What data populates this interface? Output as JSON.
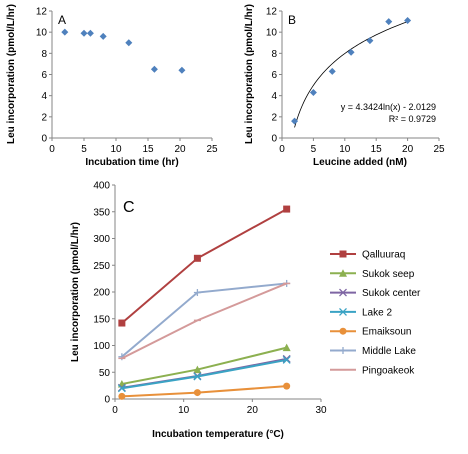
{
  "chart_data": [
    {
      "type": "scatter",
      "panel_label": "A",
      "xlabel": "Incubation time (hr)",
      "ylabel": "Leu incorporation (pmol/L/hr)",
      "xlim": [
        0,
        25
      ],
      "ylim": [
        0,
        12
      ],
      "xticks": [
        "0",
        "5",
        "10",
        "15",
        "20",
        "25"
      ],
      "yticks": [
        "0",
        "2",
        "4",
        "6",
        "8",
        "10",
        "12"
      ],
      "grid": false,
      "marker_color": "#4f81bd",
      "series": [
        {
          "x": [
            2,
            5,
            6,
            8,
            12,
            16,
            20.3
          ],
          "y": [
            10.0,
            9.9,
            9.9,
            9.6,
            9.0,
            6.5,
            6.4
          ]
        }
      ]
    },
    {
      "type": "scatter",
      "panel_label": "B",
      "xlabel": "Leucine added (nM)",
      "ylabel": "Leu incorporation (pmol/L/hr)",
      "xlim": [
        0,
        25
      ],
      "ylim": [
        0,
        12
      ],
      "xticks": [
        "0",
        "5",
        "10",
        "15",
        "20",
        "25"
      ],
      "yticks": [
        "0",
        "2",
        "4",
        "6",
        "8",
        "10",
        "12"
      ],
      "grid": false,
      "marker_color": "#4f81bd",
      "trendline": {
        "equation": "y = 4.3424ln(x) - 2.0129",
        "r2": "R² = 0.9729",
        "a": 4.3424,
        "b": -2.0129,
        "x_range": [
          2,
          20
        ]
      },
      "series": [
        {
          "x": [
            2,
            5,
            8,
            11,
            14,
            17,
            20
          ],
          "y": [
            1.6,
            4.3,
            6.3,
            8.1,
            9.2,
            11.0,
            11.1
          ]
        }
      ]
    },
    {
      "type": "line",
      "panel_label": "C",
      "xlabel": "Incubation temperature (°C)",
      "ylabel": "Leu incorporation (pmol/L/hr)",
      "xlim": [
        0,
        30
      ],
      "ylim": [
        0,
        400
      ],
      "xticks": [
        "0",
        "10",
        "20",
        "30"
      ],
      "yticks": [
        "0",
        "50",
        "100",
        "150",
        "200",
        "250",
        "300",
        "350",
        "400"
      ],
      "grid": false,
      "legend_position": "right",
      "x": [
        1,
        12,
        25
      ],
      "series": [
        {
          "name": "Qalluuraq",
          "values": [
            142,
            263,
            355
          ],
          "color": "#b04040",
          "marker": "square"
        },
        {
          "name": "Sukok seep",
          "values": [
            28,
            55,
            96
          ],
          "color": "#8cb050",
          "marker": "triangle"
        },
        {
          "name": "Sukok center",
          "values": [
            21,
            43,
            75
          ],
          "color": "#7e65a3",
          "marker": "x"
        },
        {
          "name": "Lake 2",
          "values": [
            20,
            42,
            73
          ],
          "color": "#3aa3c4",
          "marker": "x"
        },
        {
          "name": "Emaiksoun",
          "values": [
            5,
            12,
            24
          ],
          "color": "#e8903a",
          "marker": "circle"
        },
        {
          "name": "Middle Lake",
          "values": [
            79,
            199,
            216
          ],
          "color": "#93aacd",
          "marker": "plus"
        },
        {
          "name": "Pingoakeok",
          "values": [
            76,
            147,
            216
          ],
          "color": "#d49a9a",
          "marker": "dash"
        }
      ]
    }
  ]
}
